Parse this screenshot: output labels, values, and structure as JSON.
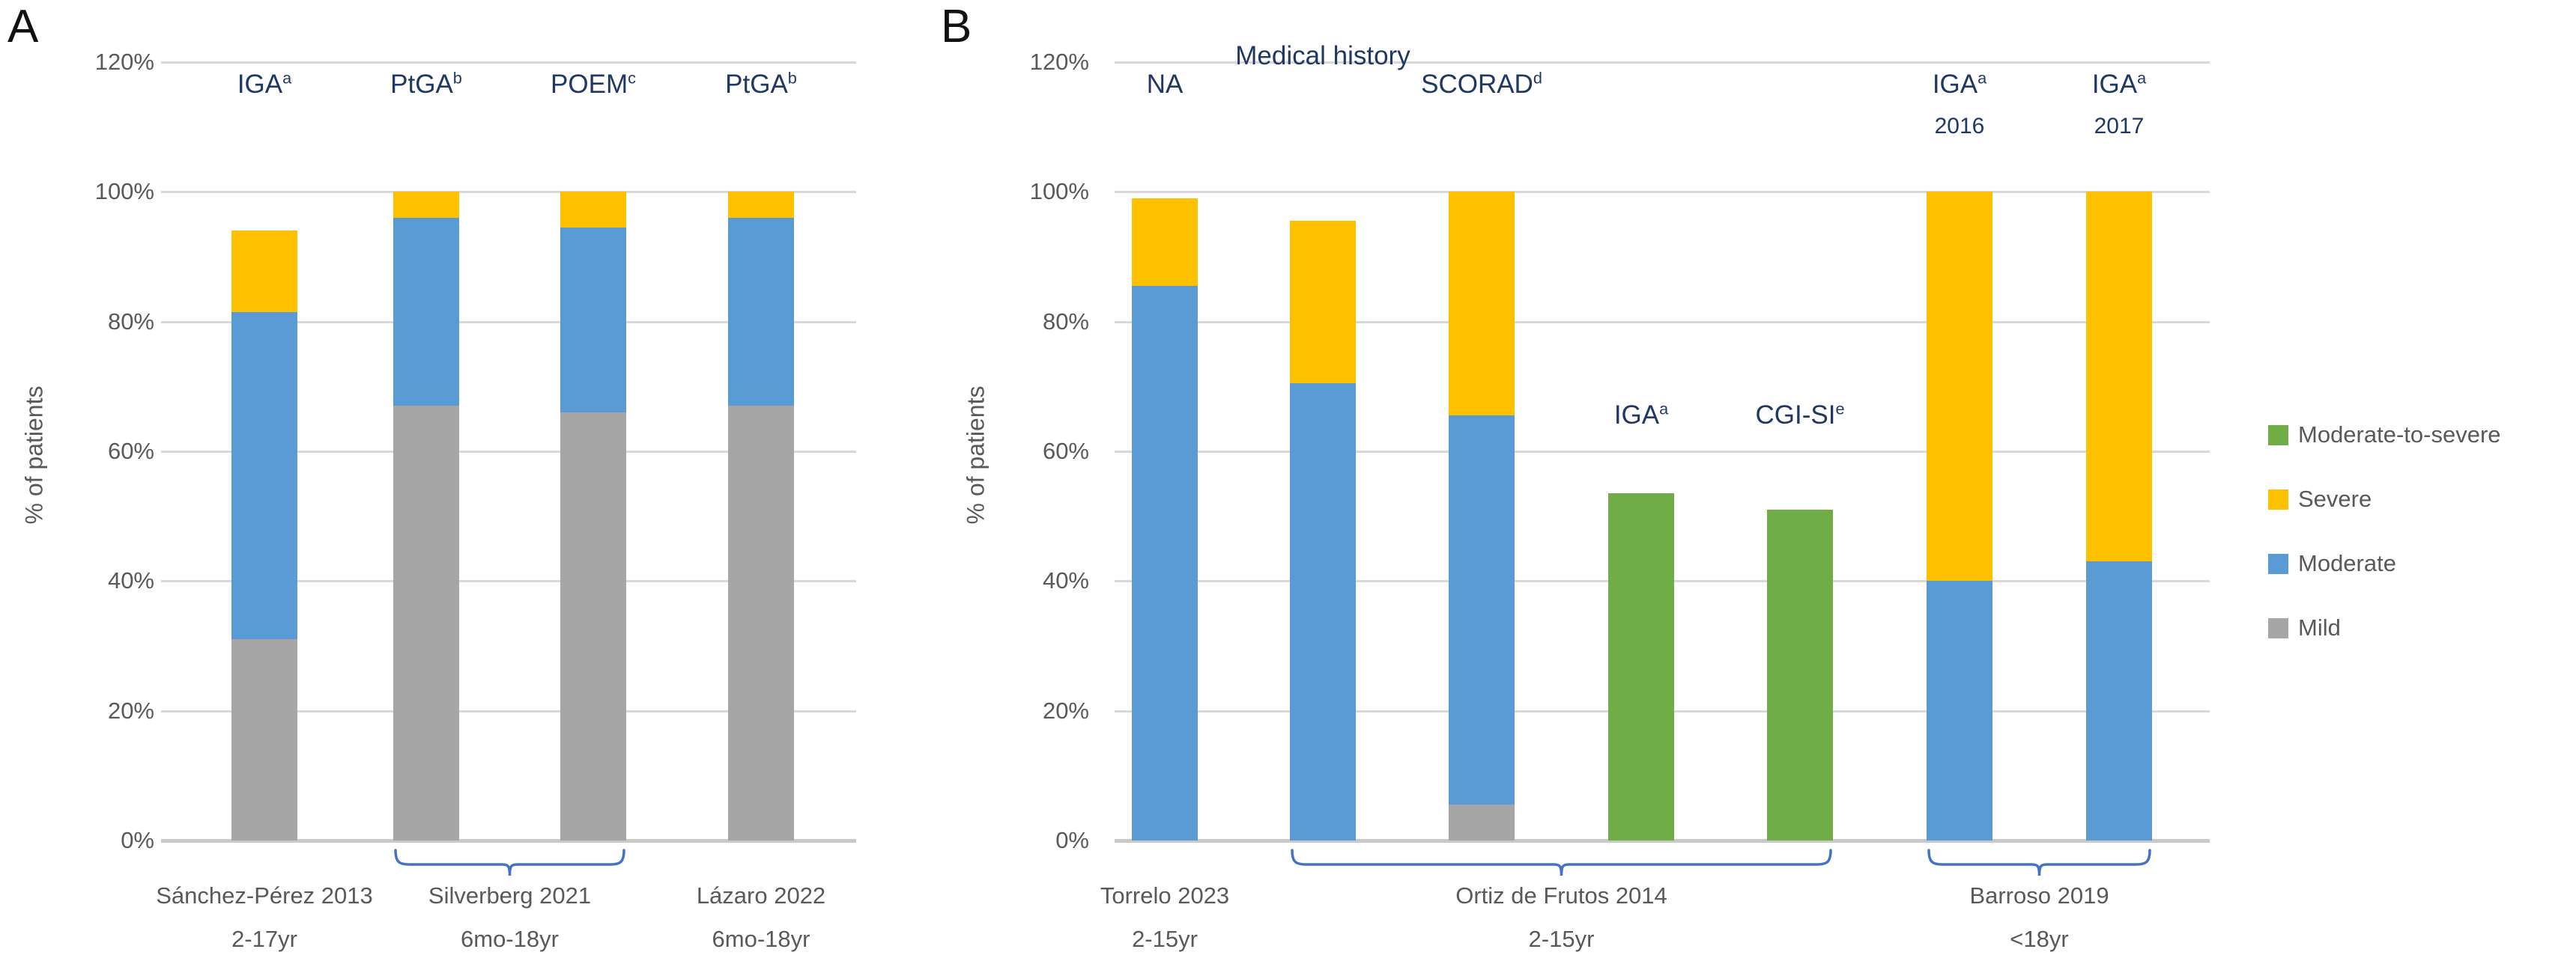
{
  "figure": {
    "kind": "two-panel 100% stacked column chart",
    "y_axis_title": "% of patients",
    "y_ticks": [
      "120%",
      "100%",
      "80%",
      "60%",
      "40%",
      "20%",
      "0%"
    ],
    "y_max_percent": 120
  },
  "colors": {
    "Moderate-to-severe": "#70AD47",
    "Severe": "#FFC000",
    "Moderate": "#5B9BD5",
    "Mild": "#A6A6A6",
    "measure_label_text": "#1F3864",
    "axis_text": "#595959",
    "gridline": "#D9D9D9",
    "axis_line": "#C9C9C9",
    "brace": "#4472C4",
    "panel_letter": "#111111"
  },
  "legend": {
    "position": "right",
    "entries": [
      {
        "label": "Moderate-to-severe",
        "color": "#70AD47"
      },
      {
        "label": "Severe",
        "color": "#FFC000"
      },
      {
        "label": "Moderate",
        "color": "#5B9BD5"
      },
      {
        "label": "Mild",
        "color": "#A6A6A6"
      }
    ]
  },
  "chart_data": [
    {
      "type": "stacked_bar",
      "letter": "A",
      "y_title": "% of patients",
      "ylim": [
        0,
        120
      ],
      "grid": true,
      "bars": [
        {
          "measure": {
            "text": "IGA",
            "sup": "a"
          },
          "label_pos": "top",
          "segments": [
            {
              "severity": "Mild",
              "value": 31
            },
            {
              "severity": "Moderate",
              "value": 50.5
            },
            {
              "severity": "Severe",
              "value": 12.5
            }
          ]
        },
        {
          "measure": {
            "text": "PtGA",
            "sup": "b"
          },
          "label_pos": "top",
          "segments": [
            {
              "severity": "Mild",
              "value": 67
            },
            {
              "severity": "Moderate",
              "value": 29
            },
            {
              "severity": "Severe",
              "value": 4
            }
          ]
        },
        {
          "measure": {
            "text": "POEM",
            "sup": "c"
          },
          "label_pos": "top",
          "segments": [
            {
              "severity": "Mild",
              "value": 66
            },
            {
              "severity": "Moderate",
              "value": 28.5
            },
            {
              "severity": "Severe",
              "value": 5.5
            }
          ]
        },
        {
          "measure": {
            "text": "PtGA",
            "sup": "b"
          },
          "label_pos": "top",
          "segments": [
            {
              "severity": "Mild",
              "value": 67
            },
            {
              "severity": "Moderate",
              "value": 29
            },
            {
              "severity": "Severe",
              "value": 4
            }
          ]
        }
      ],
      "groups": [
        {
          "label": "Sánchez-Pérez 2013",
          "sub": "2-17yr",
          "from": 0,
          "to": 0,
          "brace": false
        },
        {
          "label": "Silverberg 2021",
          "sub": "6mo-18yr",
          "from": 1,
          "to": 2,
          "brace": true
        },
        {
          "label": "Lázaro 2022",
          "sub": "6mo-18yr",
          "from": 3,
          "to": 3,
          "brace": false
        }
      ]
    },
    {
      "type": "stacked_bar",
      "letter": "B",
      "y_title": "% of patients",
      "ylim": [
        0,
        120
      ],
      "grid": true,
      "bars": [
        {
          "measure": {
            "text": "NA"
          },
          "label_pos": "top",
          "segments": [
            {
              "severity": "Moderate",
              "value": 85.5
            },
            {
              "severity": "Severe",
              "value": 13.5
            }
          ]
        },
        {
          "measure": {
            "text": "Medical history",
            "wrap": true
          },
          "label_pos": "top",
          "segments": [
            {
              "severity": "Moderate",
              "value": 70.5
            },
            {
              "severity": "Severe",
              "value": 25
            }
          ]
        },
        {
          "measure": {
            "text": "SCORAD",
            "sup": "d"
          },
          "label_pos": "top",
          "segments": [
            {
              "severity": "Mild",
              "value": 5.5
            },
            {
              "severity": "Moderate",
              "value": 60
            },
            {
              "severity": "Severe",
              "value": 34.5
            }
          ]
        },
        {
          "measure": {
            "text": "IGA",
            "sup": "a"
          },
          "label_pos": "mid",
          "segments": [
            {
              "severity": "Moderate-to-severe",
              "value": 53.5
            }
          ]
        },
        {
          "measure": {
            "text": "CGI-SI",
            "sup": "e"
          },
          "label_pos": "mid",
          "segments": [
            {
              "severity": "Moderate-to-severe",
              "value": 51
            }
          ]
        },
        {
          "measure": {
            "text": "IGA",
            "sup": "a",
            "line2": "2016"
          },
          "label_pos": "top",
          "segments": [
            {
              "severity": "Moderate",
              "value": 40
            },
            {
              "severity": "Severe",
              "value": 60
            }
          ]
        },
        {
          "measure": {
            "text": "IGA",
            "sup": "a",
            "line2": "2017"
          },
          "label_pos": "top",
          "segments": [
            {
              "severity": "Moderate",
              "value": 43
            },
            {
              "severity": "Severe",
              "value": 57
            }
          ]
        }
      ],
      "groups": [
        {
          "label": "Torrelo 2023",
          "sub": "2-15yr",
          "from": 0,
          "to": 0,
          "brace": false
        },
        {
          "label": "Ortiz de Frutos 2014",
          "sub": "2-15yr",
          "from": 1,
          "to": 4,
          "brace": true
        },
        {
          "label": "Barroso 2019",
          "sub": "<18yr",
          "from": 5,
          "to": 6,
          "brace": true
        }
      ]
    }
  ]
}
